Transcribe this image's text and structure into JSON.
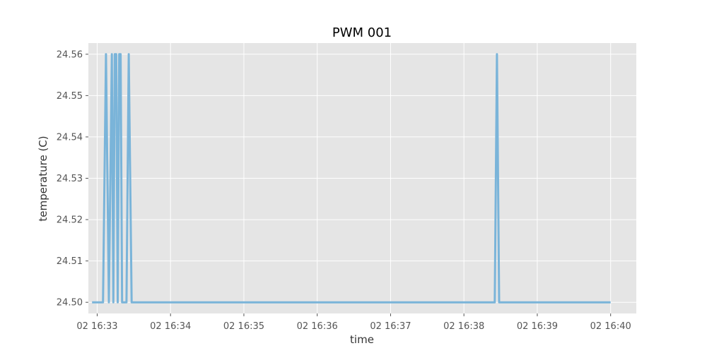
{
  "chart_data": {
    "type": "line",
    "title": "PWM 001",
    "xlabel": "time",
    "ylabel": "temperature (C)",
    "grid": true,
    "xlim": [
      -0.12,
      7.35
    ],
    "ylim": [
      24.4973,
      24.5627
    ],
    "x_ticks": [
      {
        "value": 0,
        "label": "02 16:33"
      },
      {
        "value": 1,
        "label": "02 16:34"
      },
      {
        "value": 2,
        "label": "02 16:35"
      },
      {
        "value": 3,
        "label": "02 16:36"
      },
      {
        "value": 4,
        "label": "02 16:37"
      },
      {
        "value": 5,
        "label": "02 16:38"
      },
      {
        "value": 6,
        "label": "02 16:39"
      },
      {
        "value": 7,
        "label": "02 16:40"
      }
    ],
    "y_ticks": [
      {
        "value": 24.5,
        "label": "24.50"
      },
      {
        "value": 24.51,
        "label": "24.51"
      },
      {
        "value": 24.52,
        "label": "24.52"
      },
      {
        "value": 24.53,
        "label": "24.53"
      },
      {
        "value": 24.54,
        "label": "24.54"
      },
      {
        "value": 24.55,
        "label": "24.55"
      },
      {
        "value": 24.56,
        "label": "24.56"
      }
    ],
    "x_unit": "minutes after 02 16:33",
    "series": [
      {
        "name": "temperature",
        "color": "#7ab4d9",
        "x": [
          -0.07,
          0.08,
          0.12,
          0.16,
          0.2,
          0.22,
          0.24,
          0.26,
          0.28,
          0.3,
          0.32,
          0.34,
          0.36,
          0.4,
          0.43,
          0.47,
          5.42,
          5.45,
          5.48,
          7.0
        ],
        "y": [
          24.5,
          24.5,
          24.56,
          24.5,
          24.56,
          24.5,
          24.56,
          24.56,
          24.5,
          24.56,
          24.56,
          24.5,
          24.5,
          24.5,
          24.56,
          24.5,
          24.5,
          24.56,
          24.5,
          24.5
        ]
      }
    ]
  }
}
